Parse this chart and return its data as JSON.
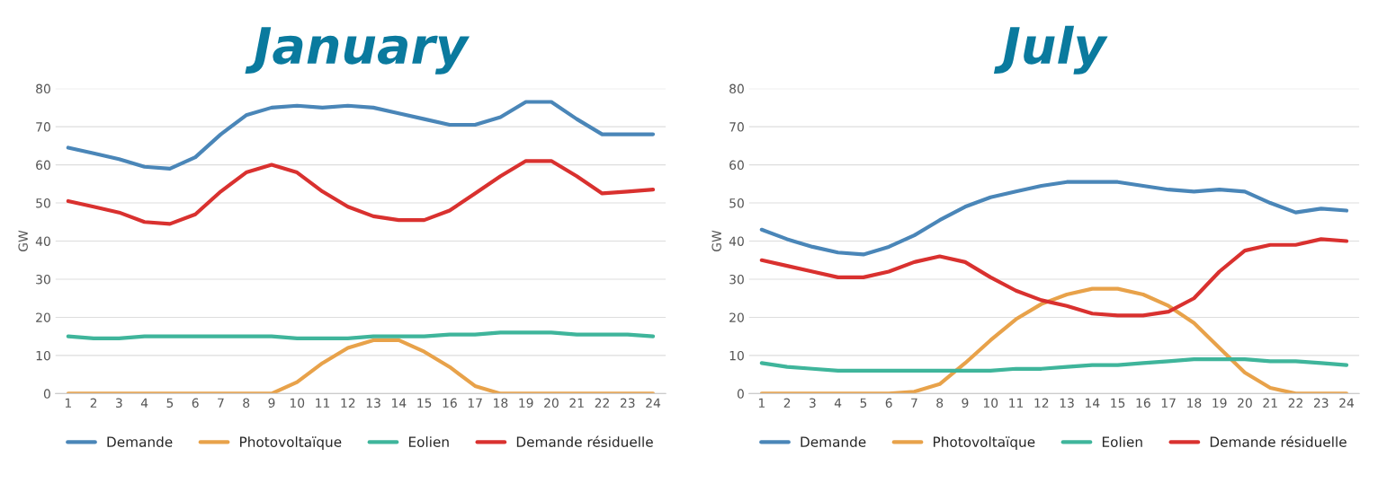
{
  "chart_data": [
    {
      "type": "line",
      "title": "January",
      "ylabel": "GW",
      "categories": [
        "1",
        "2",
        "3",
        "4",
        "5",
        "6",
        "7",
        "8",
        "9",
        "10",
        "11",
        "12",
        "13",
        "14",
        "15",
        "16",
        "17",
        "18",
        "19",
        "20",
        "21",
        "22",
        "23",
        "24"
      ],
      "ylim": [
        0,
        80
      ],
      "yticks": [
        0,
        10,
        20,
        30,
        40,
        50,
        60,
        70,
        80
      ],
      "grid": "y",
      "legend": "bottom",
      "series": [
        {
          "name": "Demande",
          "color": "#4a86b8",
          "values": [
            64.5,
            63,
            61.5,
            59.5,
            59,
            62,
            68,
            73,
            75,
            75.5,
            75,
            75.5,
            75,
            73.5,
            72,
            70.5,
            70.5,
            72.5,
            76.5,
            76.5,
            72,
            68,
            68,
            68
          ]
        },
        {
          "name": "Photovoltaïque",
          "color": "#e8a24a",
          "values": [
            0,
            0,
            0,
            0,
            0,
            0,
            0,
            0,
            0,
            3,
            8,
            12,
            14,
            14,
            11,
            7,
            2,
            0,
            0,
            0,
            0,
            0,
            0,
            0
          ]
        },
        {
          "name": "Eolien",
          "color": "#3fb59b",
          "values": [
            15,
            14.5,
            14.5,
            15,
            15,
            15,
            15,
            15,
            15,
            14.5,
            14.5,
            14.5,
            15,
            15,
            15,
            15.5,
            15.5,
            16,
            16,
            16,
            15.5,
            15.5,
            15.5,
            15
          ]
        },
        {
          "name": "Demande résiduelle",
          "color": "#d9312f",
          "values": [
            50.5,
            49,
            47.5,
            45,
            44.5,
            47,
            53,
            58,
            60,
            58,
            53,
            49,
            46.5,
            45.5,
            45.5,
            48,
            52.5,
            57,
            61,
            61,
            57,
            52.5,
            53,
            53.5
          ]
        }
      ]
    },
    {
      "type": "line",
      "title": "July",
      "ylabel": "GW",
      "categories": [
        "1",
        "2",
        "3",
        "4",
        "5",
        "6",
        "7",
        "8",
        "9",
        "10",
        "11",
        "12",
        "13",
        "14",
        "15",
        "16",
        "17",
        "18",
        "19",
        "20",
        "21",
        "22",
        "23",
        "24"
      ],
      "ylim": [
        0,
        80
      ],
      "yticks": [
        0,
        10,
        20,
        30,
        40,
        50,
        60,
        70,
        80
      ],
      "grid": "y",
      "legend": "bottom",
      "series": [
        {
          "name": "Demande",
          "color": "#4a86b8",
          "values": [
            43,
            40.5,
            38.5,
            37,
            36.5,
            38.5,
            41.5,
            45.5,
            49,
            51.5,
            53,
            54.5,
            55.5,
            55.5,
            55.5,
            54.5,
            53.5,
            53,
            53.5,
            53,
            50,
            47.5,
            48.5,
            48
          ]
        },
        {
          "name": "Photovoltaïque",
          "color": "#e8a24a",
          "values": [
            0,
            0,
            0,
            0,
            0,
            0,
            0.5,
            2.5,
            8,
            14,
            19.5,
            23.5,
            26,
            27.5,
            27.5,
            26,
            23,
            18.5,
            12,
            5.5,
            1.5,
            0,
            0,
            0
          ]
        },
        {
          "name": "Eolien",
          "color": "#3fb59b",
          "values": [
            8,
            7,
            6.5,
            6,
            6,
            6,
            6,
            6,
            6,
            6,
            6.5,
            6.5,
            7,
            7.5,
            7.5,
            8,
            8.5,
            9,
            9,
            9,
            8.5,
            8.5,
            8,
            7.5
          ]
        },
        {
          "name": "Demande résiduelle",
          "color": "#d9312f",
          "values": [
            35,
            33.5,
            32,
            30.5,
            30.5,
            32,
            34.5,
            36,
            34.5,
            30.5,
            27,
            24.5,
            23,
            21,
            20.5,
            20.5,
            21.5,
            25,
            32,
            37.5,
            39,
            39,
            40.5,
            40
          ]
        }
      ]
    }
  ]
}
